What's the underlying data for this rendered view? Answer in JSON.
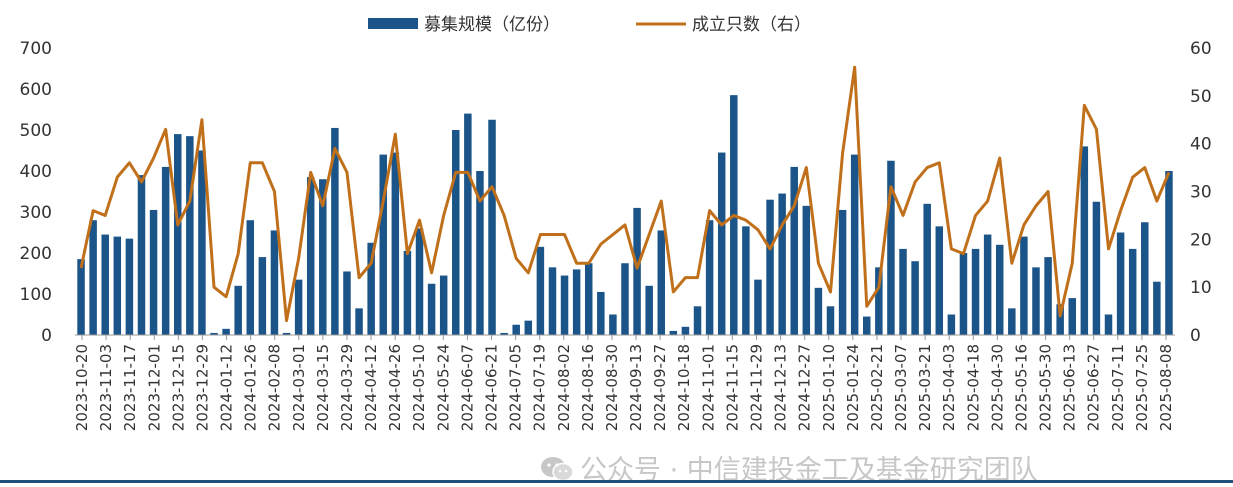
{
  "watermark": "公众号 · 中信建投金工及基金研究团队",
  "colors": {
    "bars": "#1b5488",
    "line": "#c0701b",
    "axis": "#999999"
  },
  "chart_data": {
    "type": "bar+line",
    "legend": [
      "募集规模（亿份）",
      "成立只数（右）"
    ],
    "legend_position": "top-center",
    "x_tick_labels": [
      "2023-10-20",
      "2023-11-03",
      "2023-11-17",
      "2023-12-01",
      "2023-12-15",
      "2023-12-29",
      "2024-01-12",
      "2024-01-26",
      "2024-02-08",
      "2024-03-01",
      "2024-03-15",
      "2024-03-29",
      "2024-04-12",
      "2024-04-26",
      "2024-05-10",
      "2024-05-24",
      "2024-06-07",
      "2024-06-21",
      "2024-07-05",
      "2024-07-19",
      "2024-08-02",
      "2024-08-16",
      "2024-08-30",
      "2024-09-13",
      "2024-09-27",
      "2024-10-18",
      "2024-11-01",
      "2024-11-15",
      "2024-11-29",
      "2024-12-13",
      "2024-12-27",
      "2025-01-10",
      "2025-01-24",
      "2025-02-21",
      "2025-03-07",
      "2025-03-21",
      "2025-04-03",
      "2025-04-18",
      "2025-04-30",
      "2025-05-16",
      "2025-05-30",
      "2025-06-13",
      "2025-06-27",
      "2025-07-11",
      "2025-07-25",
      "2025-08-08"
    ],
    "y_left": {
      "min": 0,
      "max": 700,
      "ticks": [
        0,
        100,
        200,
        300,
        400,
        500,
        600,
        700
      ]
    },
    "y_right": {
      "min": 0,
      "max": 60,
      "ticks": [
        0,
        10,
        20,
        30,
        40,
        50,
        60
      ]
    },
    "grid": false,
    "series": [
      {
        "name": "募集规模（亿份）",
        "type": "bar",
        "axis": "left",
        "values": [
          185,
          280,
          245,
          240,
          235,
          390,
          305,
          410,
          490,
          485,
          450,
          5,
          15,
          120,
          280,
          190,
          255,
          5,
          135,
          385,
          380,
          505,
          155,
          65,
          225,
          440,
          445,
          205,
          260,
          125,
          145,
          500,
          540,
          400,
          525,
          5,
          25,
          35,
          215,
          165,
          145,
          160,
          175,
          105,
          50,
          175,
          310,
          120,
          255,
          10,
          20,
          70,
          280,
          445,
          585,
          265,
          135,
          330,
          345,
          410,
          315,
          115,
          70,
          305,
          440,
          45,
          165,
          425,
          210,
          180,
          320,
          265,
          50,
          200,
          210,
          245,
          220,
          65,
          240,
          165,
          190,
          75,
          90,
          460,
          325,
          50,
          250,
          210,
          275,
          130,
          400
        ]
      },
      {
        "name": "成立只数（右）",
        "type": "line",
        "axis": "right",
        "values": [
          14,
          26,
          25,
          33,
          36,
          32,
          37,
          43,
          23,
          28,
          45,
          10,
          8,
          17,
          36,
          36,
          30,
          3,
          16,
          34,
          27,
          39,
          34,
          12,
          15,
          28,
          42,
          17,
          24,
          13,
          25,
          34,
          34,
          28,
          31,
          25,
          16,
          13,
          21,
          21,
          21,
          15,
          15,
          19,
          21,
          23,
          14,
          21,
          28,
          9,
          12,
          12,
          26,
          23,
          25,
          24,
          22,
          18,
          23,
          27,
          35,
          15,
          9,
          38,
          56,
          6,
          10,
          31,
          25,
          32,
          35,
          36,
          18,
          17,
          25,
          28,
          37,
          15,
          23,
          27,
          30,
          4,
          15,
          48,
          43,
          18,
          26,
          33,
          35,
          28,
          34
        ]
      }
    ]
  }
}
